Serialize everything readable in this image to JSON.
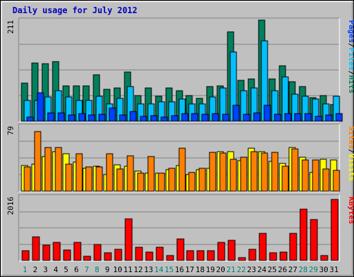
{
  "chart_data": {
    "type": "bar",
    "title": "Daily usage for July 2012",
    "categories": [
      "1",
      "2",
      "3",
      "4",
      "5",
      "6",
      "7",
      "8",
      "9",
      "10",
      "11",
      "12",
      "13",
      "14",
      "15",
      "16",
      "17",
      "18",
      "19",
      "20",
      "21",
      "22",
      "23",
      "24",
      "25",
      "26",
      "27",
      "28",
      "29",
      "30",
      "31"
    ],
    "weekend_days": [
      "1",
      "7",
      "8",
      "14",
      "15",
      "21",
      "22",
      "28",
      "29"
    ],
    "colors": {
      "weekday_label": "#000000",
      "weekend_label": "#00806f",
      "hits": "#00805c",
      "files": "#00c0ff",
      "pages": "#0040ff",
      "visits": "#ffff00",
      "sites": "#ff8000",
      "kbytes": "#ff0000",
      "background": "#c0c0c0",
      "grid": "#808080"
    },
    "panels": [
      {
        "name": "hits-files-pages",
        "max_label": "211",
        "ymax": 211,
        "legend": [
          {
            "label": "Pages",
            "color": "#0040ff"
          },
          {
            "label": "/",
            "color": "#000000"
          },
          {
            "label": "Files",
            "color": "#00c0ff"
          },
          {
            "label": "/",
            "color": "#000000"
          },
          {
            "label": "Hits",
            "color": "#00805c"
          }
        ],
        "series": [
          {
            "name": "Hits",
            "color": "#00805c",
            "values": [
              80,
              121,
              120,
              124,
              74,
              74,
              73,
              97,
              67,
              69,
              103,
              53,
              70,
              52,
              69,
              63,
              53,
              47,
              72,
              74,
              187,
              85,
              88,
              211,
              88,
              116,
              82,
              72,
              49,
              53,
              35
            ]
          },
          {
            "name": "Files",
            "color": "#00c0ff",
            "values": [
              44,
              44,
              50,
              64,
              50,
              44,
              44,
              52,
              36,
              48,
              72,
              36,
              36,
              40,
              40,
              46,
              36,
              36,
              50,
              70,
              145,
              64,
              70,
              168,
              64,
              92,
              56,
              52,
              46,
              36,
              52
            ]
          },
          {
            "name": "Pages",
            "color": "#0040ff",
            "values": [
              8,
              59,
              17,
              17,
              13,
              16,
              13,
              14,
              27,
              13,
              20,
              10,
              11,
              9,
              12,
              16,
              16,
              15,
              16,
              14,
              33,
              15,
              17,
              33,
              14,
              16,
              16,
              16,
              10,
              13,
              16
            ]
          }
        ]
      },
      {
        "name": "visits-sites",
        "max_label": "79",
        "ymax": 79,
        "legend": [
          {
            "label": "Sites",
            "color": "#ff8000"
          },
          {
            "label": "/",
            "color": "#000000"
          },
          {
            "label": "Visits",
            "color": "#ffff00"
          }
        ],
        "series": [
          {
            "name": "Visits",
            "color": "#ffff00",
            "values": [
              31,
              33,
              42,
              48,
              45,
              35,
              28,
              30,
              20,
              32,
              30,
              24,
              22,
              22,
              26,
              31,
              20,
              26,
              28,
              48,
              48,
              37,
              52,
              48,
              36,
              34,
              53,
              41,
              23,
              39,
              38
            ]
          },
          {
            "name": "Sites",
            "color": "#ff8000",
            "values": [
              29,
              72,
              53,
              53,
              33,
              45,
              29,
              29,
              45,
              27,
              43,
              22,
              42,
              22,
              28,
              52,
              23,
              28,
              47,
              46,
              39,
              41,
              48,
              46,
              47,
              30,
              51,
              38,
              38,
              27,
              25
            ]
          }
        ]
      },
      {
        "name": "kbytes",
        "max_label": "2016",
        "ymax": 2016,
        "legend": [
          {
            "label": "KBytes",
            "color": "#ff0000"
          }
        ],
        "series": [
          {
            "name": "KBytes",
            "color": "#ff0000",
            "values": [
              316,
              755,
              488,
              563,
              331,
              563,
              133,
              504,
              232,
              356,
              1325,
              415,
              259,
              421,
              145,
              670,
              304,
              313,
              317,
              570,
              644,
              88,
              361,
              854,
              238,
              252,
              845,
              1623,
              1301,
              164,
              1936
            ]
          }
        ]
      }
    ]
  }
}
